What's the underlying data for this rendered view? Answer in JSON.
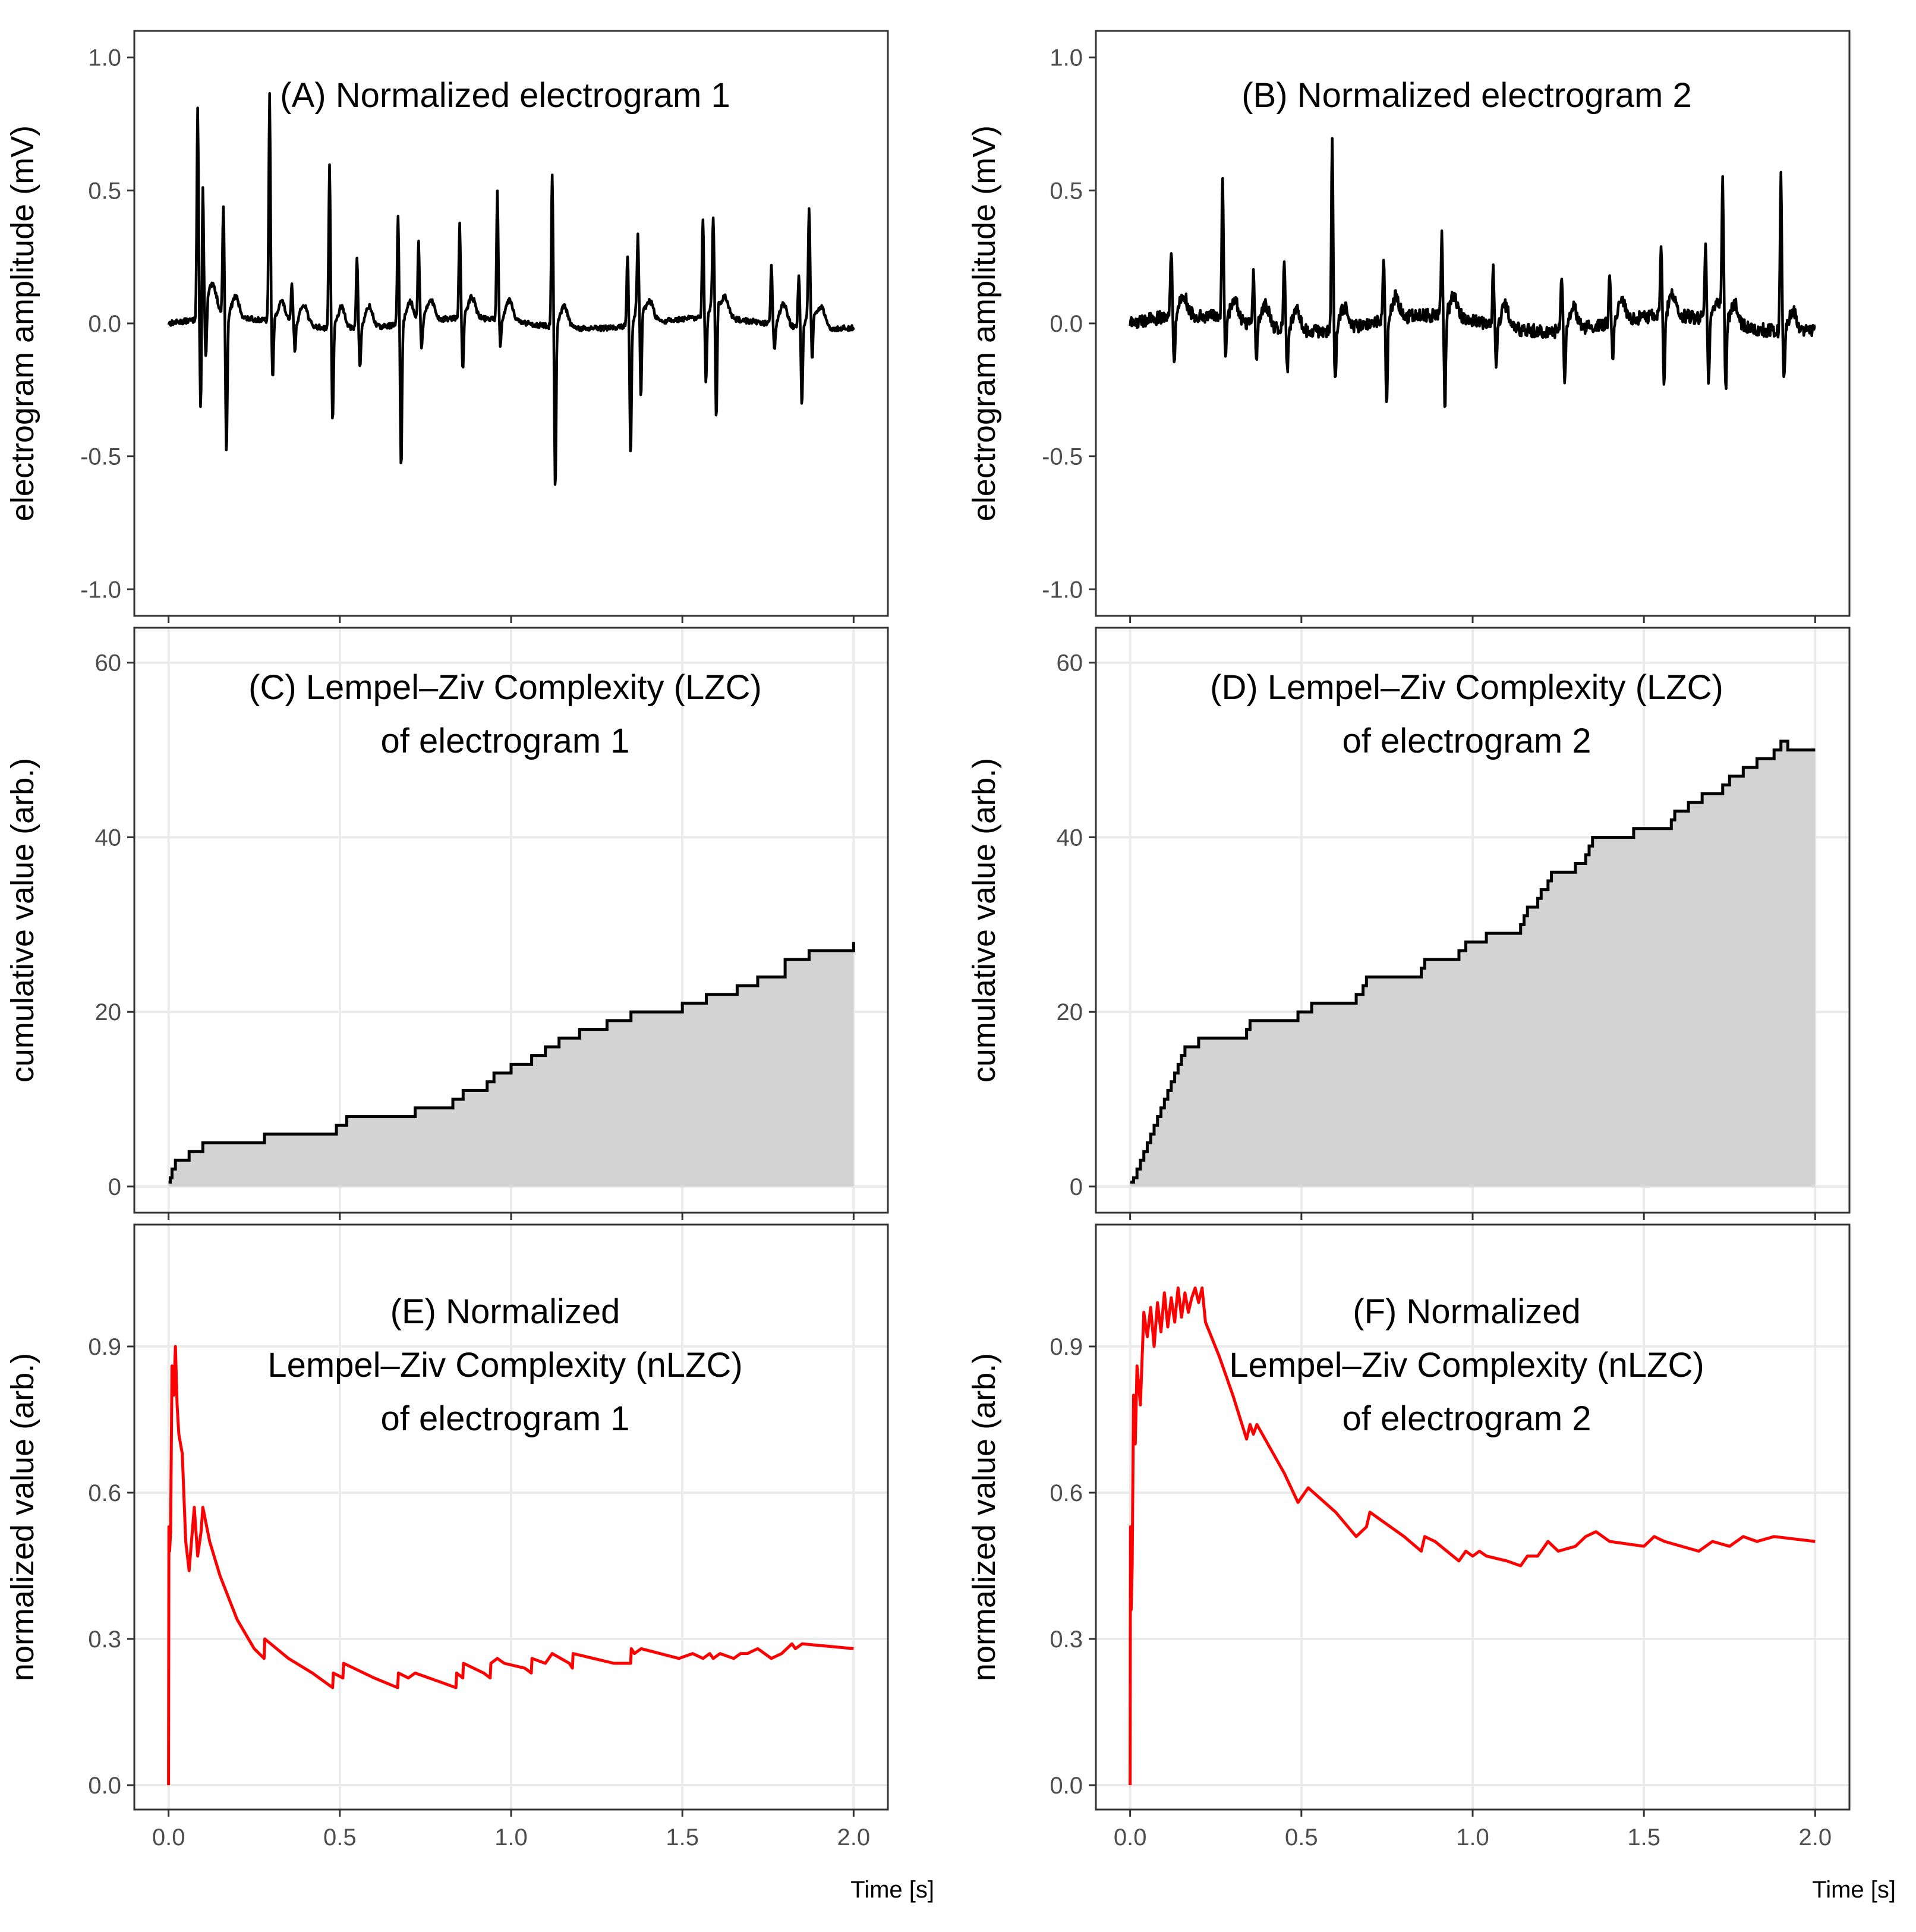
{
  "colors": {
    "panel_border": "#333333",
    "grid": "#ebebeb",
    "trace": "#000000",
    "nlzc": "#ff0000",
    "area_fill": "#d3d3d3",
    "tick_label": "#4d4d4d"
  },
  "chart_data": [
    {
      "id": "A",
      "type": "line",
      "title": [
        "(A) Normalized electrogram 1"
      ],
      "ylabel": "electrogram amplitude (mV)",
      "xlabel": "",
      "xlim": [
        -0.1,
        2.1
      ],
      "ylim": [
        -1.1,
        1.1
      ],
      "xticks": [
        0.0,
        0.5,
        1.0,
        1.5,
        2.0
      ],
      "yticks": [
        -1.0,
        -0.5,
        0.0,
        0.5,
        1.0
      ],
      "ytick_labels": [
        "-1.0",
        "-0.5",
        "0.0",
        "0.5",
        "1.0"
      ],
      "show_x_tick_labels": false,
      "grid": false,
      "x_range": [
        0.0,
        2.0
      ],
      "noise": 0.01,
      "baseline_drift": 0.02,
      "spikes": [
        [
          0.085,
          0.8,
          -0.37
        ],
        [
          0.1,
          0.5,
          -0.2
        ],
        [
          0.16,
          0.42,
          -0.52
        ],
        [
          0.295,
          0.85,
          -0.22
        ],
        [
          0.36,
          0.15,
          -0.1
        ],
        [
          0.47,
          0.62,
          -0.35
        ],
        [
          0.55,
          0.27,
          -0.15
        ],
        [
          0.67,
          0.4,
          -0.55
        ],
        [
          0.73,
          0.3,
          -0.1
        ],
        [
          0.85,
          0.35,
          -0.2
        ],
        [
          0.96,
          0.48,
          -0.1
        ],
        [
          1.12,
          0.58,
          -0.62
        ],
        [
          1.34,
          0.27,
          -0.5
        ],
        [
          1.37,
          0.26,
          -0.35
        ],
        [
          1.56,
          0.37,
          -0.25
        ],
        [
          1.59,
          0.3,
          -0.46
        ],
        [
          1.76,
          0.22,
          -0.1
        ],
        [
          1.84,
          0.2,
          -0.3
        ],
        [
          1.87,
          0.38,
          -0.2
        ]
      ]
    },
    {
      "id": "B",
      "type": "line",
      "title": [
        "(B) Normalized electrogram 2"
      ],
      "ylabel": "electrogram amplitude (mV)",
      "xlabel": "",
      "xlim": [
        -0.1,
        2.1
      ],
      "ylim": [
        -1.1,
        1.1
      ],
      "xticks": [
        0.0,
        0.5,
        1.0,
        1.5,
        2.0
      ],
      "yticks": [
        -1.0,
        -0.5,
        0.0,
        0.5,
        1.0
      ],
      "ytick_labels": [
        "-1.0",
        "-0.5",
        "0.0",
        "0.5",
        "1.0"
      ],
      "show_x_tick_labels": false,
      "grid": false,
      "x_range": [
        0.0,
        2.0
      ],
      "noise": 0.025,
      "baseline_drift": 0.03,
      "spikes": [
        [
          0.12,
          0.26,
          -0.2
        ],
        [
          0.27,
          0.55,
          -0.15
        ],
        [
          0.36,
          0.2,
          -0.12
        ],
        [
          0.45,
          0.27,
          -0.15
        ],
        [
          0.59,
          0.7,
          -0.2
        ],
        [
          0.74,
          0.24,
          -0.33
        ],
        [
          0.91,
          0.3,
          -0.36
        ],
        [
          1.06,
          0.2,
          -0.15
        ],
        [
          1.26,
          0.22,
          -0.2
        ],
        [
          1.4,
          0.2,
          -0.15
        ],
        [
          1.55,
          0.26,
          -0.25
        ],
        [
          1.68,
          0.3,
          -0.24
        ],
        [
          1.73,
          0.5,
          -0.27
        ],
        [
          1.9,
          0.62,
          -0.2
        ]
      ]
    },
    {
      "id": "C",
      "type": "area",
      "title": [
        "(C) Lempel–Ziv Complexity (LZC)",
        "of electrogram 1"
      ],
      "ylabel": "cumulative value (arb.)",
      "xlabel": "",
      "xlim": [
        -0.1,
        2.1
      ],
      "ylim": [
        -3,
        64
      ],
      "xticks": [
        0.0,
        0.5,
        1.0,
        1.5,
        2.0
      ],
      "yticks": [
        0,
        20,
        40,
        60
      ],
      "ytick_labels": [
        "0",
        "20",
        "40",
        "60"
      ],
      "show_x_tick_labels": false,
      "grid": true,
      "step_x": [
        0.0,
        0.005,
        0.01,
        0.02,
        0.06,
        0.1,
        0.28,
        0.49,
        0.52,
        0.72,
        0.83,
        0.86,
        0.93,
        0.95,
        1.0,
        1.06,
        1.1,
        1.14,
        1.2,
        1.28,
        1.35,
        1.5,
        1.57,
        1.66,
        1.72,
        1.8,
        1.87,
        2.0
      ],
      "step_y": [
        0.5,
        1,
        2,
        3,
        4,
        5,
        6,
        7,
        8,
        9,
        10,
        11,
        12,
        13,
        14,
        15,
        16,
        17,
        18,
        19,
        20,
        21,
        22,
        23,
        24,
        26,
        27,
        28
      ]
    },
    {
      "id": "D",
      "type": "area",
      "title": [
        "(D) Lempel–Ziv Complexity (LZC)",
        "of electrogram 2"
      ],
      "ylabel": "cumulative value (arb.)",
      "xlabel": "",
      "xlim": [
        -0.1,
        2.1
      ],
      "ylim": [
        -3,
        64
      ],
      "xticks": [
        0.0,
        0.5,
        1.0,
        1.5,
        2.0
      ],
      "yticks": [
        0,
        20,
        40,
        60
      ],
      "ytick_labels": [
        "0",
        "20",
        "40",
        "60"
      ],
      "show_x_tick_labels": false,
      "grid": true,
      "step_x": [
        0.0,
        0.01,
        0.02,
        0.03,
        0.04,
        0.05,
        0.06,
        0.07,
        0.08,
        0.09,
        0.1,
        0.11,
        0.12,
        0.13,
        0.14,
        0.15,
        0.16,
        0.2,
        0.34,
        0.35,
        0.49,
        0.53,
        0.66,
        0.68,
        0.69,
        0.85,
        0.86,
        0.96,
        0.98,
        1.04,
        1.14,
        1.15,
        1.16,
        1.19,
        1.2,
        1.22,
        1.23,
        1.3,
        1.33,
        1.34,
        1.35,
        1.47,
        1.58,
        1.59,
        1.63,
        1.67,
        1.73,
        1.75,
        1.79,
        1.83,
        1.88,
        1.9,
        1.92,
        2.0
      ],
      "step_y": [
        0.5,
        1,
        2,
        3,
        4,
        5,
        6,
        7,
        8,
        9,
        10,
        11,
        12,
        13,
        14,
        15,
        16,
        17,
        18,
        19,
        20,
        21,
        22,
        23,
        24,
        25,
        26,
        27,
        28,
        29,
        30,
        31,
        32,
        33,
        34,
        35,
        36,
        37,
        38,
        39,
        40,
        41,
        42,
        43,
        44,
        45,
        46,
        47,
        48,
        49,
        50,
        51,
        50,
        50
      ]
    },
    {
      "id": "E",
      "type": "line",
      "title": [
        "(E) Normalized",
        "Lempel–Ziv Complexity (nLZC)",
        "of electrogram 1"
      ],
      "ylabel": "normalized value (arb.)",
      "xlabel": "Time [s]",
      "xlim": [
        -0.1,
        2.1
      ],
      "ylim": [
        -0.05,
        1.15
      ],
      "xticks": [
        0.0,
        0.5,
        1.0,
        1.5,
        2.0
      ],
      "xtick_labels": [
        "0.0",
        "0.5",
        "1.0",
        "1.5",
        "2.0"
      ],
      "yticks": [
        0.0,
        0.3,
        0.6,
        0.9
      ],
      "ytick_labels": [
        "0.0",
        "0.3",
        "0.6",
        "0.9"
      ],
      "show_x_tick_labels": true,
      "grid": true,
      "x": [
        0.0,
        0.001,
        0.003,
        0.006,
        0.01,
        0.015,
        0.02,
        0.025,
        0.03,
        0.04,
        0.05,
        0.06,
        0.075,
        0.085,
        0.095,
        0.1,
        0.12,
        0.15,
        0.2,
        0.25,
        0.279,
        0.281,
        0.35,
        0.42,
        0.479,
        0.481,
        0.509,
        0.511,
        0.6,
        0.669,
        0.671,
        0.7,
        0.72,
        0.8,
        0.839,
        0.841,
        0.859,
        0.861,
        0.92,
        0.939,
        0.941,
        0.96,
        0.98,
        1.04,
        1.059,
        1.061,
        1.1,
        1.12,
        1.17,
        1.179,
        1.181,
        1.3,
        1.349,
        1.351,
        1.36,
        1.38,
        1.49,
        1.53,
        1.56,
        1.58,
        1.59,
        1.61,
        1.65,
        1.67,
        1.69,
        1.72,
        1.76,
        1.79,
        1.82,
        1.83,
        1.85,
        2.0
      ],
      "y": [
        0.0,
        0.53,
        0.48,
        0.52,
        0.86,
        0.8,
        0.9,
        0.78,
        0.72,
        0.68,
        0.5,
        0.44,
        0.57,
        0.47,
        0.52,
        0.57,
        0.5,
        0.43,
        0.34,
        0.28,
        0.26,
        0.3,
        0.26,
        0.23,
        0.2,
        0.23,
        0.22,
        0.25,
        0.22,
        0.2,
        0.23,
        0.22,
        0.23,
        0.21,
        0.2,
        0.23,
        0.22,
        0.25,
        0.23,
        0.22,
        0.25,
        0.26,
        0.25,
        0.24,
        0.23,
        0.26,
        0.25,
        0.27,
        0.25,
        0.24,
        0.27,
        0.25,
        0.25,
        0.28,
        0.27,
        0.28,
        0.26,
        0.27,
        0.26,
        0.27,
        0.26,
        0.27,
        0.26,
        0.27,
        0.27,
        0.28,
        0.26,
        0.27,
        0.29,
        0.28,
        0.29,
        0.28
      ]
    },
    {
      "id": "F",
      "type": "line",
      "title": [
        "(F) Normalized",
        "Lempel–Ziv Complexity (nLZC)",
        "of electrogram 2"
      ],
      "ylabel": "normalized value (arb.)",
      "xlabel": "Time [s]",
      "xlim": [
        -0.1,
        2.1
      ],
      "ylim": [
        -0.05,
        1.15
      ],
      "xticks": [
        0.0,
        0.5,
        1.0,
        1.5,
        2.0
      ],
      "xtick_labels": [
        "0.0",
        "0.5",
        "1.0",
        "1.5",
        "2.0"
      ],
      "yticks": [
        0.0,
        0.3,
        0.6,
        0.9
      ],
      "ytick_labels": [
        "0.0",
        "0.3",
        "0.6",
        "0.9"
      ],
      "show_x_tick_labels": true,
      "grid": true,
      "x": [
        0.0,
        0.001,
        0.003,
        0.006,
        0.01,
        0.015,
        0.02,
        0.03,
        0.04,
        0.05,
        0.06,
        0.07,
        0.08,
        0.09,
        0.1,
        0.11,
        0.12,
        0.13,
        0.14,
        0.15,
        0.16,
        0.17,
        0.18,
        0.19,
        0.2,
        0.21,
        0.22,
        0.26,
        0.3,
        0.34,
        0.35,
        0.36,
        0.37,
        0.45,
        0.49,
        0.52,
        0.6,
        0.66,
        0.69,
        0.7,
        0.8,
        0.85,
        0.86,
        0.89,
        0.96,
        0.98,
        1.0,
        1.02,
        1.04,
        1.1,
        1.14,
        1.16,
        1.19,
        1.22,
        1.25,
        1.3,
        1.33,
        1.36,
        1.4,
        1.5,
        1.53,
        1.56,
        1.66,
        1.7,
        1.75,
        1.79,
        1.83,
        1.88,
        2.0
      ],
      "y": [
        0.0,
        0.53,
        0.36,
        0.45,
        0.8,
        0.7,
        0.86,
        0.78,
        0.97,
        0.92,
        0.98,
        0.9,
        0.99,
        0.93,
        1.01,
        0.94,
        1.0,
        0.95,
        1.02,
        0.96,
        1.01,
        0.97,
        1.0,
        1.02,
        0.99,
        1.02,
        0.95,
        0.88,
        0.8,
        0.71,
        0.74,
        0.72,
        0.74,
        0.64,
        0.58,
        0.61,
        0.56,
        0.51,
        0.53,
        0.56,
        0.51,
        0.48,
        0.51,
        0.5,
        0.46,
        0.48,
        0.47,
        0.48,
        0.47,
        0.46,
        0.45,
        0.47,
        0.47,
        0.5,
        0.48,
        0.49,
        0.51,
        0.52,
        0.5,
        0.49,
        0.51,
        0.5,
        0.48,
        0.5,
        0.49,
        0.51,
        0.5,
        0.51,
        0.5
      ]
    }
  ]
}
